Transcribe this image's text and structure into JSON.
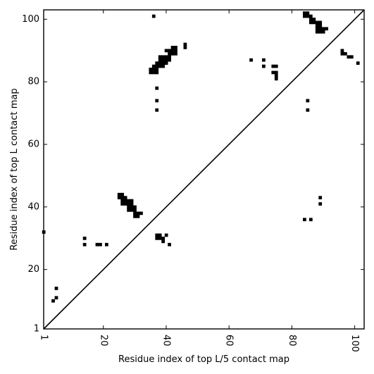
{
  "chart_data": {
    "type": "heatmap",
    "xlabel": "Residue index of top L/5 contact map",
    "ylabel": "Residue index of top L contact map",
    "xlim": [
      1,
      103
    ],
    "ylim": [
      1,
      103
    ],
    "x_ticks": [
      {
        "value": 1,
        "label": "1"
      },
      {
        "value": 20,
        "label": "20"
      },
      {
        "value": 40,
        "label": "40"
      },
      {
        "value": 60,
        "label": "60"
      },
      {
        "value": 80,
        "label": "80"
      },
      {
        "value": 100,
        "label": "100"
      }
    ],
    "y_ticks": [
      {
        "value": 1,
        "label": "1"
      },
      {
        "value": 20,
        "label": "20"
      },
      {
        "value": 40,
        "label": "40"
      },
      {
        "value": 60,
        "label": "60"
      },
      {
        "value": 80,
        "label": "80"
      },
      {
        "value": 100,
        "label": "100"
      }
    ],
    "diagonal": true,
    "cell_color": "#000000",
    "upper_contacts": [
      [
        36,
        101
      ],
      [
        46,
        91
      ],
      [
        46,
        92
      ],
      [
        42,
        90
      ],
      [
        43,
        90
      ],
      [
        42,
        91
      ],
      [
        43,
        91
      ],
      [
        40,
        90
      ],
      [
        41,
        90
      ],
      [
        41,
        89
      ],
      [
        42,
        89
      ],
      [
        43,
        89
      ],
      [
        38,
        88
      ],
      [
        39,
        88
      ],
      [
        40,
        88
      ],
      [
        41,
        88
      ],
      [
        38,
        87
      ],
      [
        39,
        87
      ],
      [
        40,
        87
      ],
      [
        41,
        87
      ],
      [
        38,
        86
      ],
      [
        39,
        86
      ],
      [
        40,
        86
      ],
      [
        37,
        86
      ],
      [
        37,
        85
      ],
      [
        38,
        85
      ],
      [
        39,
        85
      ],
      [
        36,
        85
      ],
      [
        35,
        84
      ],
      [
        36,
        84
      ],
      [
        37,
        84
      ],
      [
        35,
        83
      ],
      [
        36,
        83
      ],
      [
        37,
        83
      ],
      [
        37,
        78
      ],
      [
        37,
        74
      ],
      [
        37,
        71
      ],
      [
        67,
        87
      ],
      [
        71,
        87
      ],
      [
        71,
        85
      ],
      [
        74,
        85
      ],
      [
        75,
        85
      ],
      [
        74,
        83
      ],
      [
        75,
        83
      ],
      [
        75,
        82
      ],
      [
        75,
        81
      ],
      [
        85,
        74
      ],
      [
        85,
        71
      ],
      [
        84,
        102
      ],
      [
        85,
        102
      ],
      [
        84,
        101
      ],
      [
        85,
        101
      ],
      [
        86,
        101
      ],
      [
        86,
        100
      ],
      [
        87,
        100
      ],
      [
        86,
        99
      ],
      [
        87,
        99
      ],
      [
        88,
        99
      ],
      [
        89,
        99
      ],
      [
        88,
        98
      ],
      [
        89,
        98
      ],
      [
        88,
        97
      ],
      [
        89,
        97
      ],
      [
        90,
        97
      ],
      [
        91,
        97
      ],
      [
        88,
        96
      ],
      [
        89,
        96
      ],
      [
        90,
        96
      ],
      [
        96,
        90
      ],
      [
        96,
        89
      ],
      [
        97,
        89
      ],
      [
        98,
        88
      ],
      [
        99,
        88
      ],
      [
        101,
        86
      ]
    ],
    "lower_contacts": [
      [
        1,
        32
      ],
      [
        5,
        14
      ],
      [
        5,
        11
      ],
      [
        4,
        10
      ],
      [
        14,
        30
      ],
      [
        14,
        28
      ],
      [
        18,
        28
      ],
      [
        19,
        28
      ],
      [
        21,
        28
      ],
      [
        25,
        44
      ],
      [
        26,
        44
      ],
      [
        25,
        43
      ],
      [
        26,
        43
      ],
      [
        27,
        43
      ],
      [
        26,
        42
      ],
      [
        27,
        42
      ],
      [
        28,
        42
      ],
      [
        29,
        42
      ],
      [
        26,
        41
      ],
      [
        27,
        41
      ],
      [
        28,
        41
      ],
      [
        29,
        41
      ],
      [
        28,
        40
      ],
      [
        29,
        40
      ],
      [
        30,
        40
      ],
      [
        28,
        39
      ],
      [
        29,
        39
      ],
      [
        30,
        39
      ],
      [
        30,
        38
      ],
      [
        31,
        38
      ],
      [
        32,
        38
      ],
      [
        30,
        37
      ],
      [
        31,
        37
      ],
      [
        37,
        31
      ],
      [
        38,
        31
      ],
      [
        40,
        31
      ],
      [
        37,
        30
      ],
      [
        38,
        30
      ],
      [
        39,
        30
      ],
      [
        39,
        29
      ],
      [
        41,
        28
      ],
      [
        84,
        36
      ],
      [
        86,
        36
      ],
      [
        89,
        43
      ],
      [
        89,
        41
      ]
    ]
  }
}
